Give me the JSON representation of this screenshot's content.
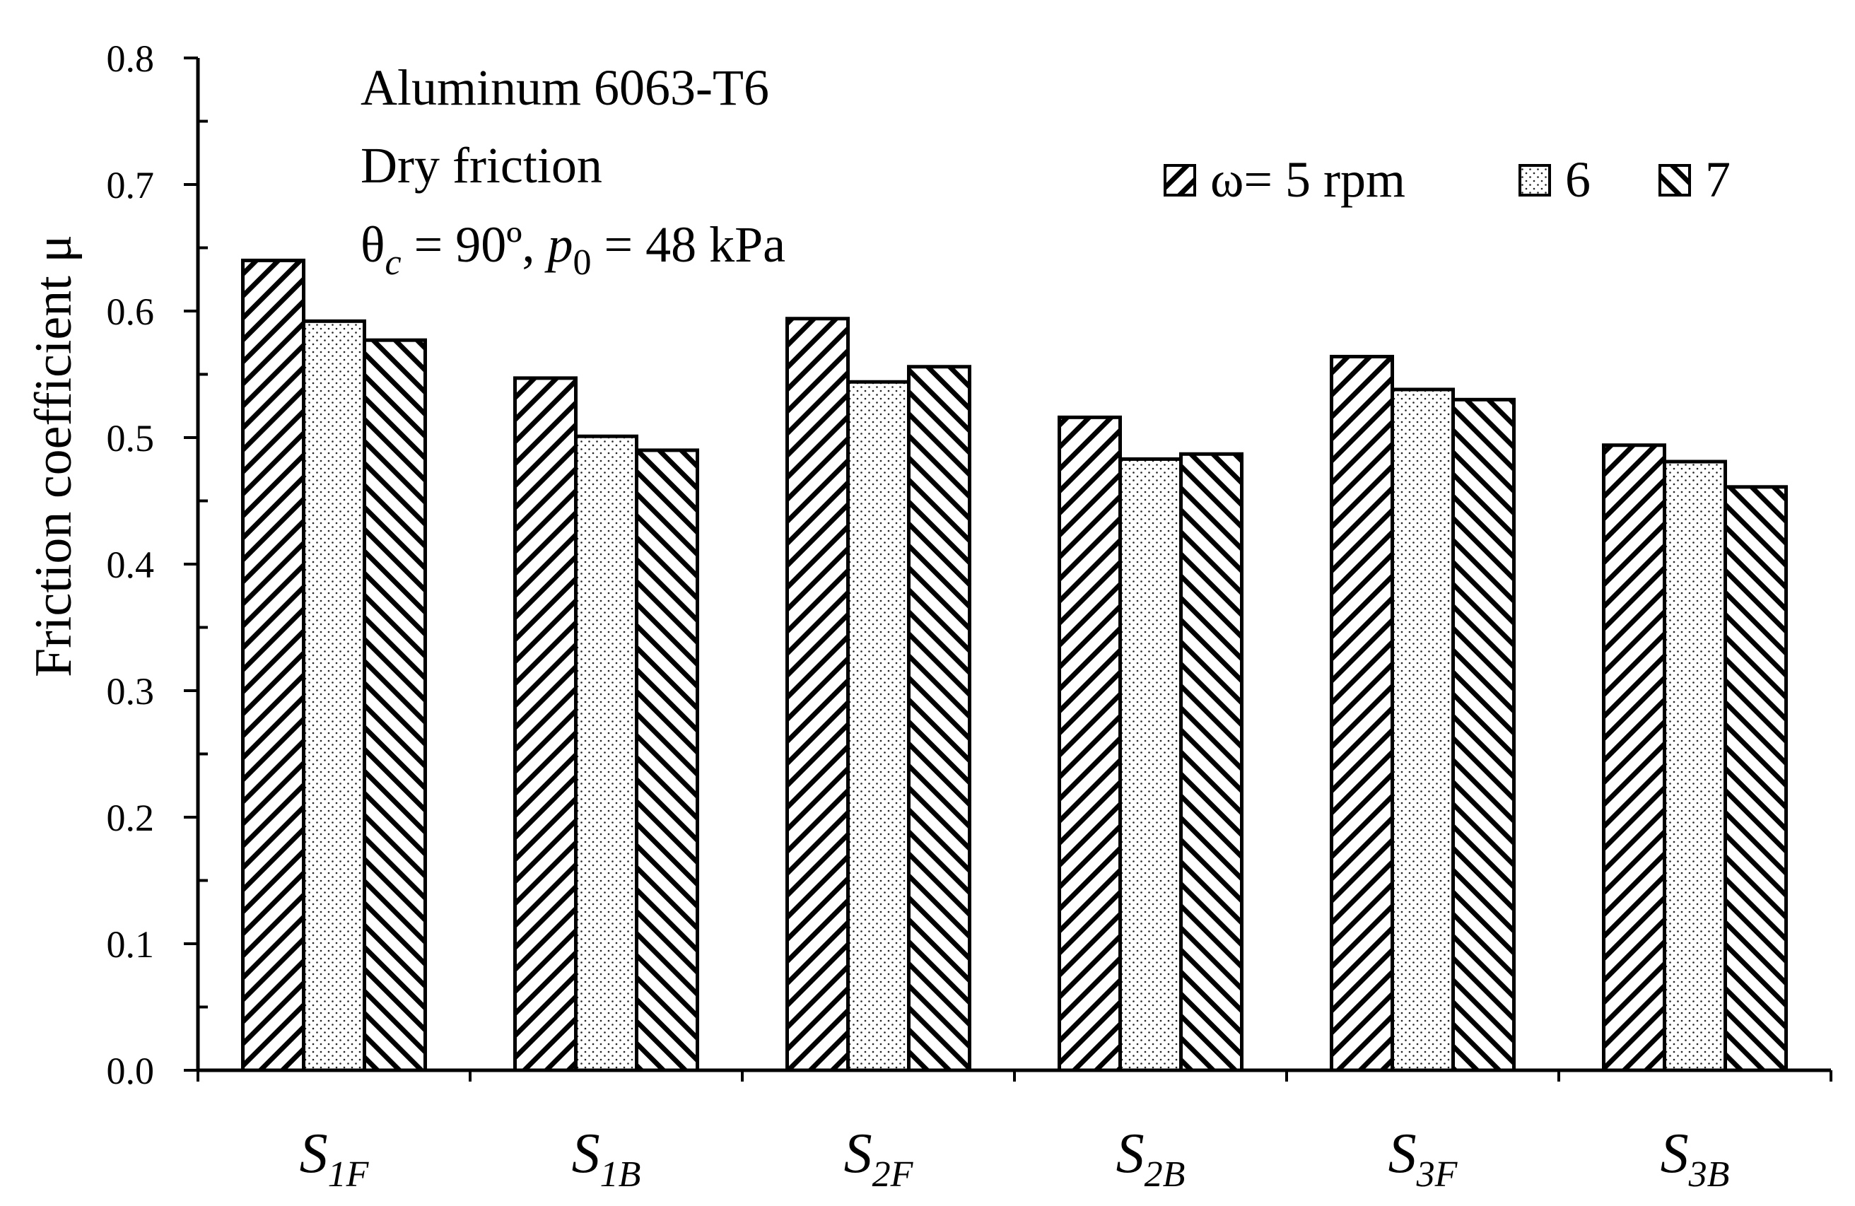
{
  "chart_data": {
    "type": "bar",
    "title": "",
    "annotations": [
      "Aluminum 6063-T6",
      "Dry friction",
      "θc = 90º,  p0 = 48 kPa"
    ],
    "ylabel": "Friction coefficient μ",
    "xlabel": "",
    "ylim": [
      0,
      0.8
    ],
    "yticks": [
      "0.0",
      "0.1",
      "0.2",
      "0.3",
      "0.4",
      "0.5",
      "0.6",
      "0.7",
      "0.8"
    ],
    "categories": [
      {
        "base": "S",
        "sub": "1F"
      },
      {
        "base": "S",
        "sub": "1B"
      },
      {
        "base": "S",
        "sub": "2F"
      },
      {
        "base": "S",
        "sub": "2B"
      },
      {
        "base": "S",
        "sub": "3F"
      },
      {
        "base": "S",
        "sub": "3B"
      }
    ],
    "series": [
      {
        "name": "ω= 5 rpm",
        "pattern": "backslash",
        "values": [
          0.64,
          0.547,
          0.594,
          0.516,
          0.564,
          0.494
        ]
      },
      {
        "name": "6",
        "pattern": "dots",
        "values": [
          0.592,
          0.501,
          0.544,
          0.483,
          0.538,
          0.481
        ]
      },
      {
        "name": "7",
        "pattern": "slash",
        "values": [
          0.577,
          0.49,
          0.556,
          0.487,
          0.53,
          0.461
        ]
      }
    ],
    "legend_position": "top-right",
    "grid": false
  },
  "colors": {
    "stroke": "#000000",
    "fill": "#ffffff"
  }
}
